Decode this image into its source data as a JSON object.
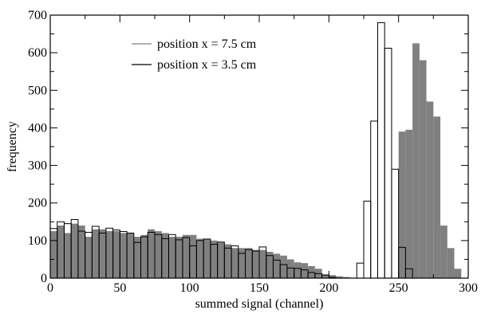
{
  "chart_data": {
    "type": "bar",
    "xlabel": "summed signal (channel)",
    "ylabel": "frequency",
    "xlim": [
      0,
      300
    ],
    "ylim": [
      0,
      700
    ],
    "x_ticks": [
      0,
      50,
      100,
      150,
      200,
      250,
      300
    ],
    "y_ticks": [
      0,
      100,
      200,
      300,
      400,
      500,
      600,
      700
    ],
    "bin_width": 5,
    "bin_starts": [
      0,
      5,
      10,
      15,
      20,
      25,
      30,
      35,
      40,
      45,
      50,
      55,
      60,
      65,
      70,
      75,
      80,
      85,
      90,
      95,
      100,
      105,
      110,
      115,
      120,
      125,
      130,
      135,
      140,
      145,
      150,
      155,
      160,
      165,
      170,
      175,
      180,
      185,
      190,
      195,
      200,
      205,
      210,
      215,
      220,
      225,
      230,
      235,
      240,
      245,
      250,
      255,
      260,
      265,
      270,
      275,
      280,
      285,
      290,
      295
    ],
    "legend_position": "top-left",
    "grid": false,
    "series": [
      {
        "name": "position x = 7.5 cm",
        "style": "filled",
        "color": "#808080",
        "values": [
          125,
          140,
          120,
          145,
          140,
          110,
          130,
          130,
          125,
          125,
          120,
          120,
          110,
          115,
          130,
          125,
          120,
          110,
          110,
          115,
          115,
          105,
          105,
          100,
          95,
          90,
          80,
          80,
          80,
          75,
          75,
          70,
          65,
          60,
          50,
          42,
          40,
          32,
          25,
          10,
          8,
          5,
          3,
          0,
          0,
          0,
          0,
          0,
          0,
          0,
          390,
          395,
          625,
          580,
          470,
          430,
          140,
          80,
          25,
          0
        ]
      },
      {
        "name": "position x = 3.5 cm",
        "style": "outline",
        "color": "#000000",
        "values": [
          132,
          150,
          145,
          156,
          125,
          122,
          138,
          120,
          133,
          128,
          124,
          120,
          95,
          110,
          122,
          116,
          105,
          116,
          102,
          108,
          86,
          100,
          104,
          90,
          96,
          80,
          86,
          66,
          76,
          72,
          83,
          60,
          48,
          36,
          27,
          26,
          22,
          15,
          12,
          8,
          2,
          0,
          0,
          0,
          40,
          205,
          418,
          680,
          612,
          290,
          82,
          25,
          0,
          0,
          0,
          0,
          0,
          0,
          0,
          0
        ]
      }
    ]
  }
}
